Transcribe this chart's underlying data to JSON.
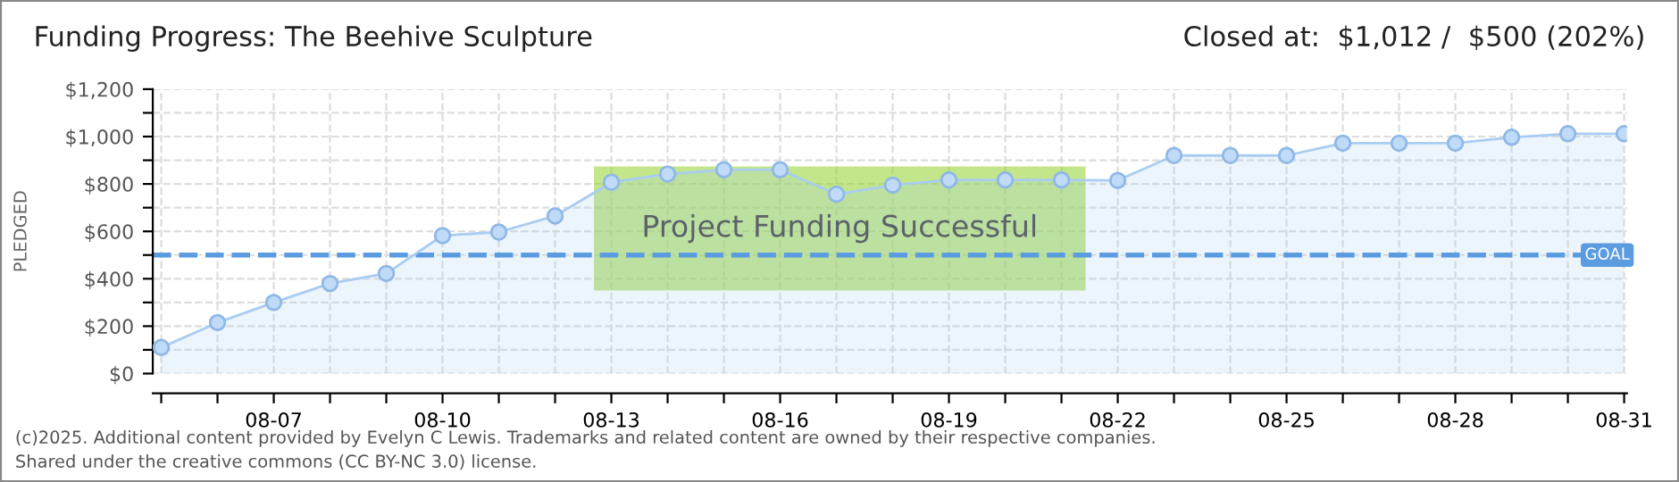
{
  "chart_data": {
    "type": "area",
    "title": "Funding Progress: The Beehive Sculpture",
    "subtitle": "Closed at:  $1,012 /  $500 (202%)",
    "ylabel": "PLEDGED",
    "categories": [
      null,
      null,
      "08-07",
      null,
      null,
      "08-10",
      null,
      null,
      "08-13",
      null,
      null,
      "08-16",
      null,
      null,
      "08-19",
      null,
      null,
      "08-22",
      null,
      null,
      "08-25",
      null,
      null,
      "08-28",
      null,
      null,
      "08-31"
    ],
    "series": [
      {
        "color": "#a9cdf2",
        "values": [
          110,
          215,
          300,
          380,
          422,
          582,
          597,
          665,
          807,
          842,
          860,
          860,
          757,
          795,
          817,
          817,
          817,
          815,
          920,
          920,
          920,
          972,
          972,
          972,
          997,
          1012,
          1012
        ]
      }
    ],
    "ylim": [
      0,
      1200
    ],
    "yticks": [
      {
        "value": 0,
        "label": "$0"
      },
      {
        "value": 100,
        "label": null
      },
      {
        "value": 200,
        "label": "$200"
      },
      {
        "value": 300,
        "label": null
      },
      {
        "value": 400,
        "label": "$400"
      },
      {
        "value": 500,
        "label": null
      },
      {
        "value": 600,
        "label": "$600"
      },
      {
        "value": 700,
        "label": null
      },
      {
        "value": 800,
        "label": "$800"
      },
      {
        "value": 900,
        "label": null
      },
      {
        "value": 1000,
        "label": "$1,000"
      },
      {
        "value": 1100,
        "label": null
      },
      {
        "value": 1200,
        "label": "$1,200"
      }
    ],
    "ref_lines": [
      {
        "axis": "y",
        "value": 500,
        "label": "GOAL",
        "color": "#5b9be0",
        "line_style": "dashed"
      }
    ],
    "annotations": [
      "Project Funding Successful",
      "(c)2025. Additional content provided by Evelyn C Lewis. Trademarks and related content are owned by their respective companies.",
      "Shared under the creative commons (CC BY-NC 3.0) license."
    ],
    "grid": true,
    "marker": "circle",
    "line_style": "solid"
  }
}
